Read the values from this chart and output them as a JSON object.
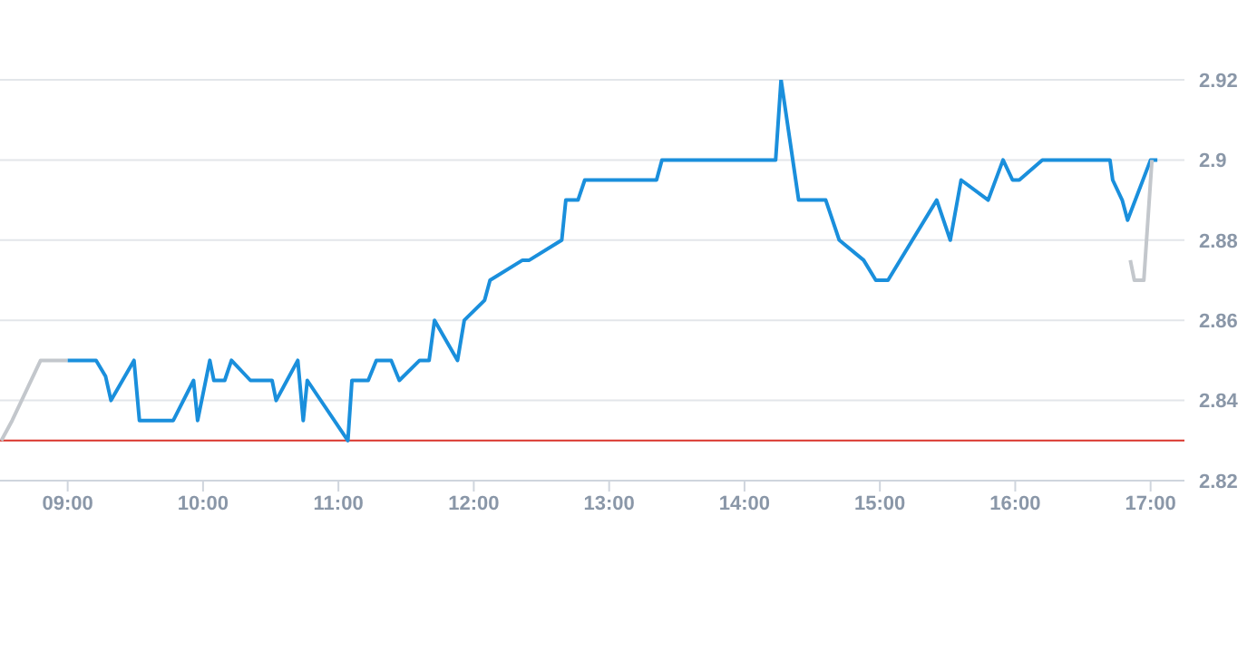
{
  "chart_data": {
    "type": "line",
    "series": [
      {
        "color": "#c3c7cc",
        "x": [
          8.51,
          8.59,
          8.8,
          9.0
        ],
        "values": [
          2.83,
          2.835,
          2.85,
          2.85
        ]
      },
      {
        "color": "#1a8fdc",
        "x": [
          9.0,
          9.21,
          9.28,
          9.32,
          9.49,
          9.53,
          9.78,
          9.93,
          9.96,
          10.05,
          10.08,
          10.16,
          10.21,
          10.35,
          10.51,
          10.54,
          10.62,
          10.7,
          10.74,
          10.77,
          11.07,
          11.1,
          11.22,
          11.28,
          11.39,
          11.45,
          11.6,
          11.67,
          11.71,
          11.88,
          11.93,
          12.08,
          12.12,
          12.36,
          12.41,
          12.65,
          12.68,
          12.77,
          12.82,
          13.35,
          13.39,
          14.23,
          14.27,
          14.4,
          14.6,
          14.7,
          14.88,
          14.97,
          15.06,
          15.42,
          15.52,
          15.6,
          15.8,
          15.91,
          15.98,
          16.03,
          16.2,
          16.7,
          16.72,
          16.79,
          16.83,
          17.0,
          17.05
        ],
        "values": [
          2.85,
          2.85,
          2.846,
          2.84,
          2.85,
          2.835,
          2.835,
          2.845,
          2.835,
          2.85,
          2.845,
          2.845,
          2.85,
          2.845,
          2.845,
          2.84,
          2.845,
          2.85,
          2.835,
          2.845,
          2.83,
          2.845,
          2.845,
          2.85,
          2.85,
          2.845,
          2.85,
          2.85,
          2.86,
          2.85,
          2.86,
          2.865,
          2.87,
          2.875,
          2.875,
          2.88,
          2.89,
          2.89,
          2.895,
          2.895,
          2.9,
          2.9,
          2.92,
          2.89,
          2.89,
          2.88,
          2.875,
          2.87,
          2.87,
          2.89,
          2.88,
          2.895,
          2.89,
          2.9,
          2.895,
          2.895,
          2.9,
          2.9,
          2.895,
          2.89,
          2.885,
          2.9,
          2.9
        ]
      },
      {
        "color": "#c3c7cc",
        "x": [
          16.85,
          16.88,
          16.95,
          17.01
        ],
        "values": [
          2.875,
          2.87,
          2.87,
          2.9
        ]
      }
    ],
    "xlim": [
      8.5,
      17.25
    ],
    "xticks": [
      {
        "value": 9,
        "label": "09:00"
      },
      {
        "value": 10,
        "label": "10:00"
      },
      {
        "value": 11,
        "label": "11:00"
      },
      {
        "value": 12,
        "label": "12:00"
      },
      {
        "value": 13,
        "label": "13:00"
      },
      {
        "value": 14,
        "label": "14:00"
      },
      {
        "value": 15,
        "label": "15:00"
      },
      {
        "value": 16,
        "label": "16:00"
      },
      {
        "value": 17,
        "label": "17:00"
      }
    ],
    "ylim": [
      2.82,
      2.92
    ],
    "yticks": [
      2.82,
      2.84,
      2.86,
      2.88,
      2.9,
      2.92
    ],
    "ref_lines": [
      {
        "axis": "y",
        "value": 2.83,
        "color": "#d9342b"
      }
    ],
    "grid": "y",
    "marker": "none",
    "line_style": "solid"
  }
}
